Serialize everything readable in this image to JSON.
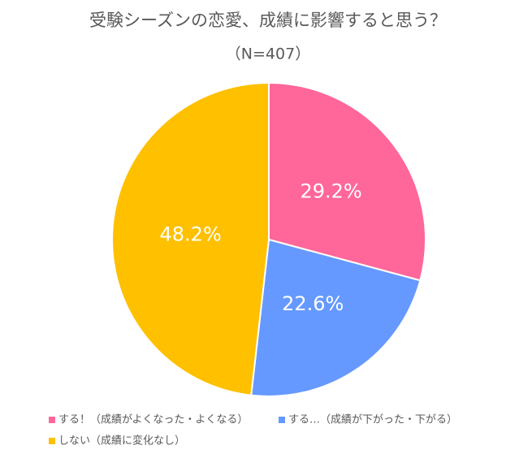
{
  "chart_data": {
    "type": "pie",
    "title": "受験シーズンの恋愛、成績に影響すると思う？",
    "subtitle": "（N=407）",
    "categories": [
      "する！（成績がよくなった・よくなる）",
      "する…（成績が下がった・下がる）",
      "しない（成績に変化なし）"
    ],
    "values": [
      29.2,
      22.6,
      48.2
    ],
    "value_labels": [
      "29.2%",
      "22.6%",
      "48.2%"
    ],
    "colors": [
      "#ff6699",
      "#6699ff",
      "#ffc000"
    ],
    "legend": "bottom"
  }
}
